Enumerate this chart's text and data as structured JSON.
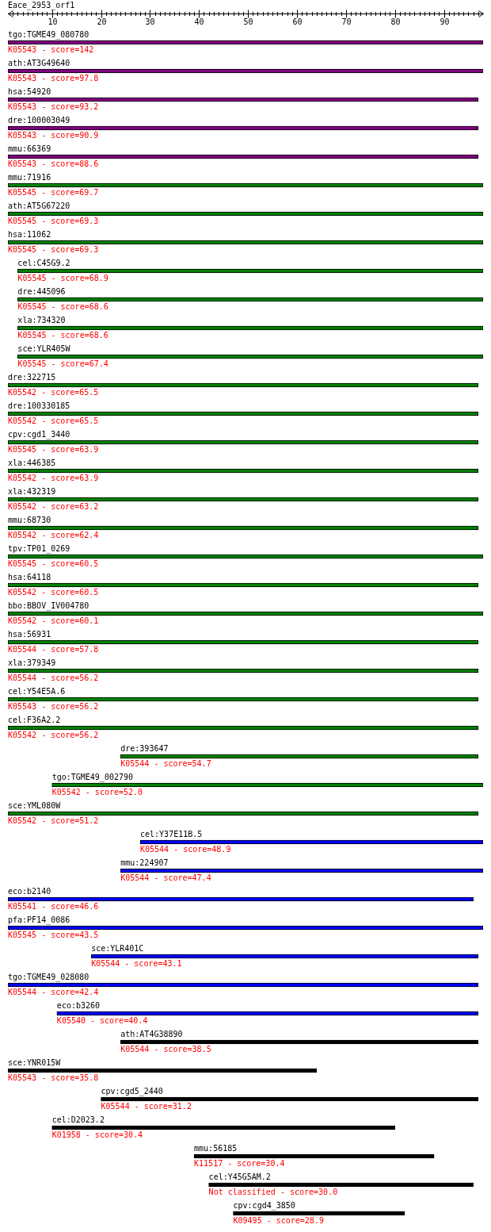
{
  "chart_data": {
    "type": "bar",
    "orientation": "horizontal",
    "title": "Eace_2953_orf1",
    "categories": [
      "tgo:TGME49_080780",
      "ath:AT3G49640",
      "hsa:54920",
      "dre:100003049",
      "mmu:66369",
      "mmu:71916",
      "ath:AT5G67220",
      "hsa:11062",
      "cel:C45G9.2",
      "dre:445096",
      "xla:734320",
      "sce:YLR405W",
      "dre:322715",
      "dre:100330185",
      "cpv:cgd1_3440",
      "xla:446385",
      "xla:432319",
      "mmu:68730",
      "tpv:TP01_0269",
      "hsa:64118",
      "bbo:BBOV_IV004780",
      "hsa:56931",
      "xla:379349",
      "cel:Y54E5A.6",
      "cel:F36A2.2",
      "dre:393647",
      "tgo:TGME49_002790",
      "sce:YML080W",
      "cel:Y37E11B.5",
      "mmu:224907",
      "eco:b2140",
      "pfa:PF14_0086",
      "sce:YLR401C",
      "tgo:TGME49_028080",
      "eco:b3260",
      "ath:AT4G38890",
      "sce:YNR015W",
      "cpv:cgd5_2440",
      "cel:D2023.2",
      "mmu:56185",
      "cel:Y45G5AM.2",
      "cpv:cgd4_3850"
    ],
    "base": [
      1,
      1,
      1,
      1,
      1,
      1,
      1,
      1,
      3,
      3,
      3,
      3,
      1,
      1,
      1,
      1,
      1,
      1,
      1,
      1,
      1,
      1,
      1,
      1,
      1,
      24,
      10,
      1,
      28,
      24,
      1,
      1,
      18,
      1,
      11,
      24,
      1,
      20,
      10,
      39,
      42,
      47
    ],
    "values": [
      97,
      97,
      96,
      96,
      96,
      97,
      97,
      97,
      95,
      95,
      95,
      95,
      96,
      96,
      96,
      96,
      96,
      96,
      97,
      96,
      97,
      96,
      96,
      96,
      96,
      73,
      88,
      96,
      70,
      74,
      95,
      97,
      79,
      96,
      86,
      73,
      63,
      77,
      70,
      49,
      54,
      35
    ],
    "colors": [
      "#800080",
      "#800080",
      "#800080",
      "#800080",
      "#800080",
      "#008000",
      "#008000",
      "#008000",
      "#008000",
      "#008000",
      "#008000",
      "#008000",
      "#008000",
      "#008000",
      "#008000",
      "#008000",
      "#008000",
      "#008000",
      "#008000",
      "#008000",
      "#008000",
      "#008000",
      "#008000",
      "#008000",
      "#008000",
      "#008000",
      "#008000",
      "#008000",
      "#0000ff",
      "#0000ff",
      "#0000ff",
      "#0000ff",
      "#0000ff",
      "#0000ff",
      "#0000ff",
      "#000000",
      "#000000",
      "#000000",
      "#000000",
      "#000000",
      "#000000",
      "#000000"
    ],
    "annotations": [
      "K05543 - score=142",
      "K05543 - score=97.8",
      "K05543 - score=93.2",
      "K05543 - score=90.9",
      "K05543 - score=88.6",
      "K05545 - score=69.7",
      "K05545 - score=69.3",
      "K05545 - score=69.3",
      "K05545 - score=68.9",
      "K05545 - score=68.6",
      "K05545 - score=68.6",
      "K05545 - score=67.4",
      "K05542 - score=65.5",
      "K05542 - score=65.5",
      "K05545 - score=63.9",
      "K05542 - score=63.9",
      "K05542 - score=63.2",
      "K05542 - score=62.4",
      "K05545 - score=60.5",
      "K05542 - score=60.5",
      "K05542 - score=60.1",
      "K05544 - score=57.8",
      "K05544 - score=56.2",
      "K05543 - score=56.2",
      "K05542 - score=56.2",
      "K05544 - score=54.7",
      "K05542 - score=52.0",
      "K05542 - score=51.2",
      "K05544 - score=48.9",
      "K05544 - score=47.4",
      "K05541 - score=46.6",
      "K05545 - score=43.5",
      "K05544 - score=43.1",
      "K05544 - score=42.4",
      "K05540 - score=40.4",
      "K05544 - score=38.5",
      "K05543 - score=35.8",
      "K05544 - score=31.2",
      "K01958 - score=30.4",
      "K11517 - score=30.4",
      "Not classified - score=30.0",
      "K09495 - score=28.9"
    ],
    "xlim": [
      1,
      98
    ],
    "xticks": [
      {
        "value": 2,
        "label": null
      },
      {
        "value": 3,
        "label": null
      },
      {
        "value": 4,
        "label": null
      },
      {
        "value": 5,
        "label": null
      },
      {
        "value": 6,
        "label": null
      },
      {
        "value": 7,
        "label": null
      },
      {
        "value": 8,
        "label": null
      },
      {
        "value": 9,
        "label": null
      },
      10,
      {
        "value": 11,
        "label": null
      },
      {
        "value": 12,
        "label": null
      },
      {
        "value": 13,
        "label": null
      },
      {
        "value": 14,
        "label": null
      },
      {
        "value": 15,
        "label": null
      },
      {
        "value": 16,
        "label": null
      },
      {
        "value": 17,
        "label": null
      },
      {
        "value": 18,
        "label": null
      },
      {
        "value": 19,
        "label": null
      },
      20,
      {
        "value": 21,
        "label": null
      },
      {
        "value": 22,
        "label": null
      },
      {
        "value": 23,
        "label": null
      },
      {
        "value": 24,
        "label": null
      },
      {
        "value": 25,
        "label": null
      },
      {
        "value": 26,
        "label": null
      },
      {
        "value": 27,
        "label": null
      },
      {
        "value": 28,
        "label": null
      },
      {
        "value": 29,
        "label": null
      },
      30,
      {
        "value": 31,
        "label": null
      },
      {
        "value": 32,
        "label": null
      },
      {
        "value": 33,
        "label": null
      },
      {
        "value": 34,
        "label": null
      },
      {
        "value": 35,
        "label": null
      },
      {
        "value": 36,
        "label": null
      },
      {
        "value": 37,
        "label": null
      },
      {
        "value": 38,
        "label": null
      },
      {
        "value": 39,
        "label": null
      },
      40,
      {
        "value": 41,
        "label": null
      },
      {
        "value": 42,
        "label": null
      },
      {
        "value": 43,
        "label": null
      },
      {
        "value": 44,
        "label": null
      },
      {
        "value": 45,
        "label": null
      },
      {
        "value": 46,
        "label": null
      },
      {
        "value": 47,
        "label": null
      },
      {
        "value": 48,
        "label": null
      },
      {
        "value": 49,
        "label": null
      },
      50,
      {
        "value": 51,
        "label": null
      },
      {
        "value": 52,
        "label": null
      },
      {
        "value": 53,
        "label": null
      },
      {
        "value": 54,
        "label": null
      },
      {
        "value": 55,
        "label": null
      },
      {
        "value": 56,
        "label": null
      },
      {
        "value": 57,
        "label": null
      },
      {
        "value": 58,
        "label": null
      },
      {
        "value": 59,
        "label": null
      },
      60,
      {
        "value": 61,
        "label": null
      },
      {
        "value": 62,
        "label": null
      },
      {
        "value": 63,
        "label": null
      },
      {
        "value": 64,
        "label": null
      },
      {
        "value": 65,
        "label": null
      },
      {
        "value": 66,
        "label": null
      },
      {
        "value": 67,
        "label": null
      },
      {
        "value": 68,
        "label": null
      },
      {
        "value": 69,
        "label": null
      },
      70,
      {
        "value": 71,
        "label": null
      },
      {
        "value": 72,
        "label": null
      },
      {
        "value": 73,
        "label": null
      },
      {
        "value": 74,
        "label": null
      },
      {
        "value": 75,
        "label": null
      },
      {
        "value": 76,
        "label": null
      },
      {
        "value": 77,
        "label": null
      },
      {
        "value": 78,
        "label": null
      },
      {
        "value": 79,
        "label": null
      },
      80,
      {
        "value": 81,
        "label": null
      },
      {
        "value": 82,
        "label": null
      },
      {
        "value": 83,
        "label": null
      },
      {
        "value": 84,
        "label": null
      },
      {
        "value": 85,
        "label": null
      },
      {
        "value": 86,
        "label": null
      },
      {
        "value": 87,
        "label": null
      },
      {
        "value": 88,
        "label": null
      },
      {
        "value": 89,
        "label": null
      },
      90,
      {
        "value": 91,
        "label": null
      },
      {
        "value": 92,
        "label": null
      },
      {
        "value": 93,
        "label": null
      },
      {
        "value": 94,
        "label": null
      },
      {
        "value": 95,
        "label": null
      },
      {
        "value": 96,
        "label": null
      },
      {
        "value": 97,
        "label": null
      }
    ]
  }
}
